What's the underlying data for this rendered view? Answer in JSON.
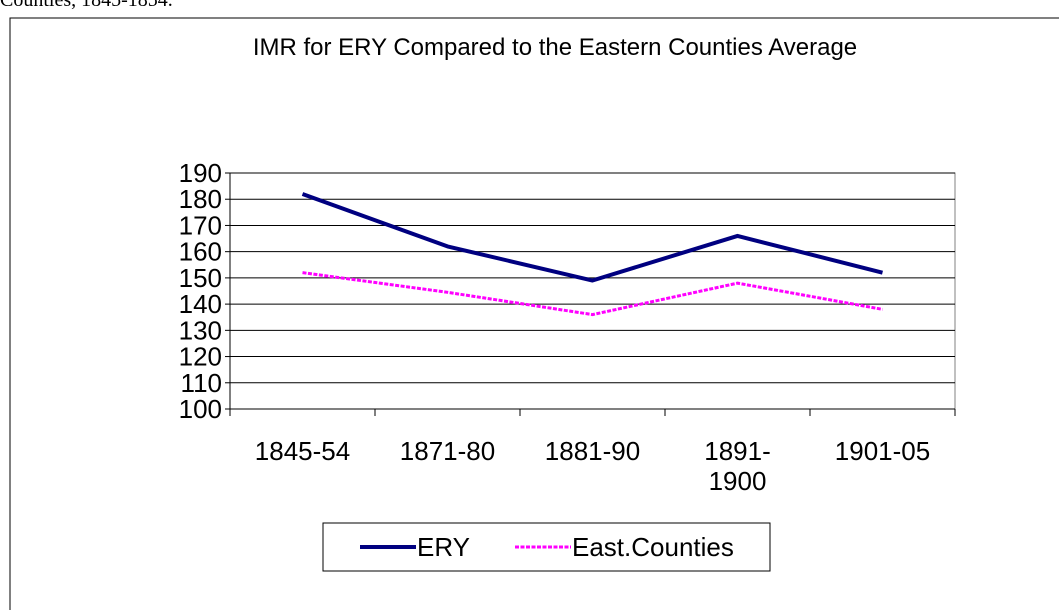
{
  "caption": "Counties, 1845-1854.",
  "chart_data": {
    "type": "line",
    "title": "IMR for ERY Compared to the Eastern Counties Average",
    "categories": [
      "1845-54",
      "1871-80",
      "1881-90",
      "1891-1900",
      "1901-05"
    ],
    "series": [
      {
        "name": "ERY",
        "color": "#000080",
        "values": [
          182,
          162,
          149,
          166,
          152
        ]
      },
      {
        "name": "East.Counties",
        "color": "#ff00ff",
        "values": [
          152,
          144.5,
          136,
          148,
          138
        ]
      }
    ],
    "ylim": [
      100,
      190
    ],
    "yticks": [
      100,
      110,
      120,
      130,
      140,
      150,
      160,
      170,
      180,
      190
    ],
    "grid": true,
    "legend": "bottom"
  }
}
